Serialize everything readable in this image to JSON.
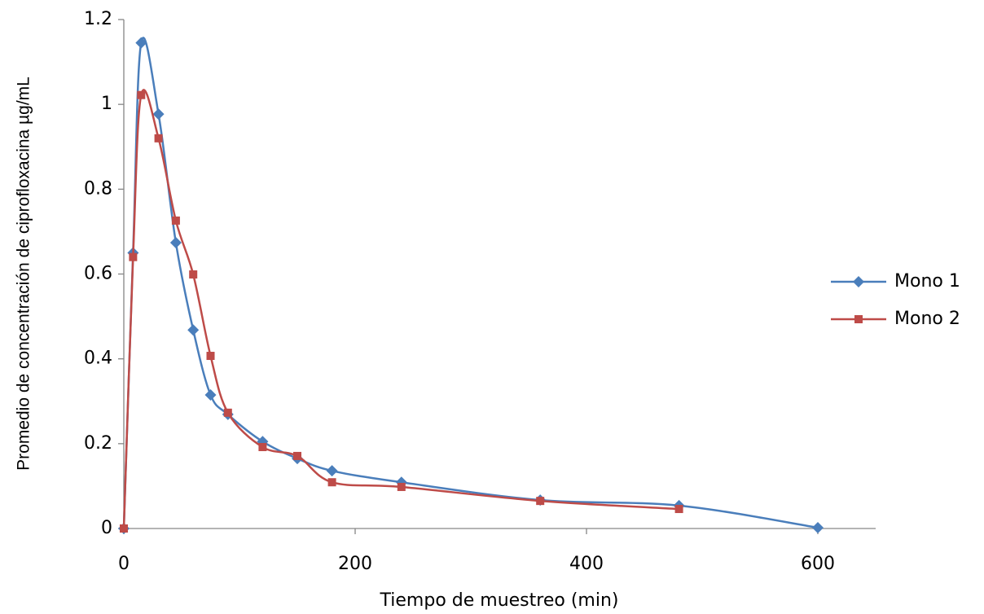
{
  "chart_data": {
    "type": "line",
    "x_label": "Tiempo de muestreo (min)",
    "y_label": "Promedio de concentración de ciprofloxacina µg/mL",
    "xlim": [
      0,
      650
    ],
    "xticks": [
      0,
      200,
      400,
      600
    ],
    "ylim": [
      0,
      1.2
    ],
    "yticks": [
      0,
      0.2,
      0.4,
      0.6,
      0.8,
      1,
      1.2
    ],
    "legend": "right",
    "smooth": true,
    "series": [
      {
        "name": "Mono 1",
        "color": "#4a7ebb",
        "marker": "diamond",
        "x": [
          0,
          8,
          15,
          30,
          45,
          60,
          75,
          90,
          120,
          150,
          180,
          240,
          360,
          480,
          600
        ],
        "values": [
          0,
          0.65,
          1.145,
          0.977,
          0.674,
          0.468,
          0.315,
          0.269,
          0.205,
          0.165,
          0.136,
          0.109,
          0.067,
          0.054,
          0.002
        ]
      },
      {
        "name": "Mono 2",
        "color": "#be4b48",
        "marker": "square",
        "x": [
          0,
          8,
          15,
          30,
          45,
          60,
          75,
          90,
          120,
          150,
          180,
          240,
          360,
          480
        ],
        "values": [
          0,
          0.64,
          1.022,
          0.92,
          0.726,
          0.599,
          0.407,
          0.273,
          0.192,
          0.171,
          0.109,
          0.098,
          0.065,
          0.046
        ]
      }
    ]
  }
}
